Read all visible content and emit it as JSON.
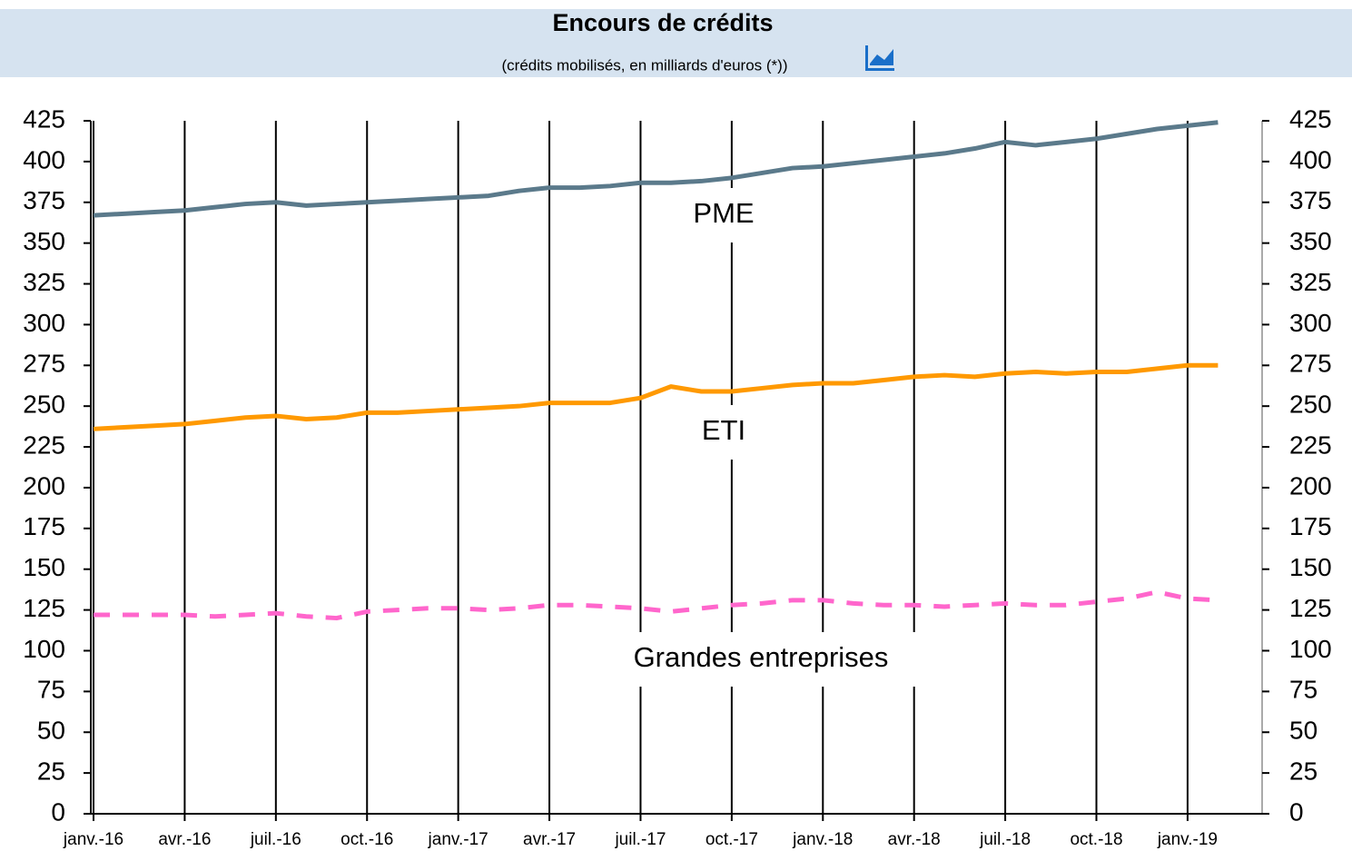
{
  "chart_data": {
    "type": "line",
    "title": "Encours de crédits",
    "subtitle": "(crédits mobilisés, en milliards d'euros (*))",
    "categories": [
      "janv.-16",
      null,
      null,
      "avr.-16",
      null,
      null,
      "juil.-16",
      null,
      null,
      "oct.-16",
      null,
      null,
      "janv.-17",
      null,
      null,
      "avr.-17",
      null,
      null,
      "juil.-17",
      null,
      null,
      "oct.-17",
      null,
      null,
      "janv.-18",
      null,
      null,
      "avr.-18",
      null,
      null,
      "juil.-18",
      null,
      null,
      "oct.-18",
      null,
      null,
      "janv.-19",
      null
    ],
    "series": [
      {
        "name": "PME",
        "color": "#5b7a8b",
        "dash": false,
        "values": [
          367,
          368,
          369,
          370,
          372,
          374,
          375,
          373,
          374,
          375,
          376,
          377,
          378,
          379,
          382,
          384,
          384,
          385,
          387,
          387,
          388,
          390,
          393,
          396,
          397,
          399,
          401,
          403,
          405,
          408,
          412,
          410,
          412,
          414,
          417,
          420,
          422,
          424
        ]
      },
      {
        "name": "ETI",
        "color": "#ff9900",
        "dash": false,
        "values": [
          236,
          237,
          238,
          239,
          241,
          243,
          244,
          242,
          243,
          246,
          246,
          247,
          248,
          249,
          250,
          252,
          252,
          252,
          255,
          262,
          259,
          259,
          261,
          263,
          264,
          264,
          266,
          268,
          269,
          268,
          270,
          271,
          270,
          271,
          271,
          273,
          275,
          275
        ]
      },
      {
        "name": "Grandes entreprises",
        "color": "#ff66cc",
        "dash": true,
        "values": [
          122,
          122,
          122,
          122,
          121,
          122,
          123,
          121,
          120,
          124,
          125,
          126,
          126,
          125,
          126,
          128,
          128,
          127,
          126,
          124,
          126,
          128,
          129,
          131,
          131,
          129,
          128,
          128,
          127,
          128,
          129,
          128,
          128,
          130,
          132,
          136,
          132,
          131
        ]
      }
    ],
    "ylim": [
      0,
      425
    ],
    "yticks": [
      0,
      25,
      50,
      75,
      100,
      125,
      150,
      175,
      200,
      225,
      250,
      275,
      300,
      325,
      350,
      375,
      400,
      425
    ],
    "y2lim": [
      0,
      425
    ],
    "y2ticks": [
      0,
      25,
      50,
      75,
      100,
      125,
      150,
      175,
      200,
      225,
      250,
      275,
      300,
      325,
      350,
      375,
      400,
      425
    ],
    "grid": true
  }
}
